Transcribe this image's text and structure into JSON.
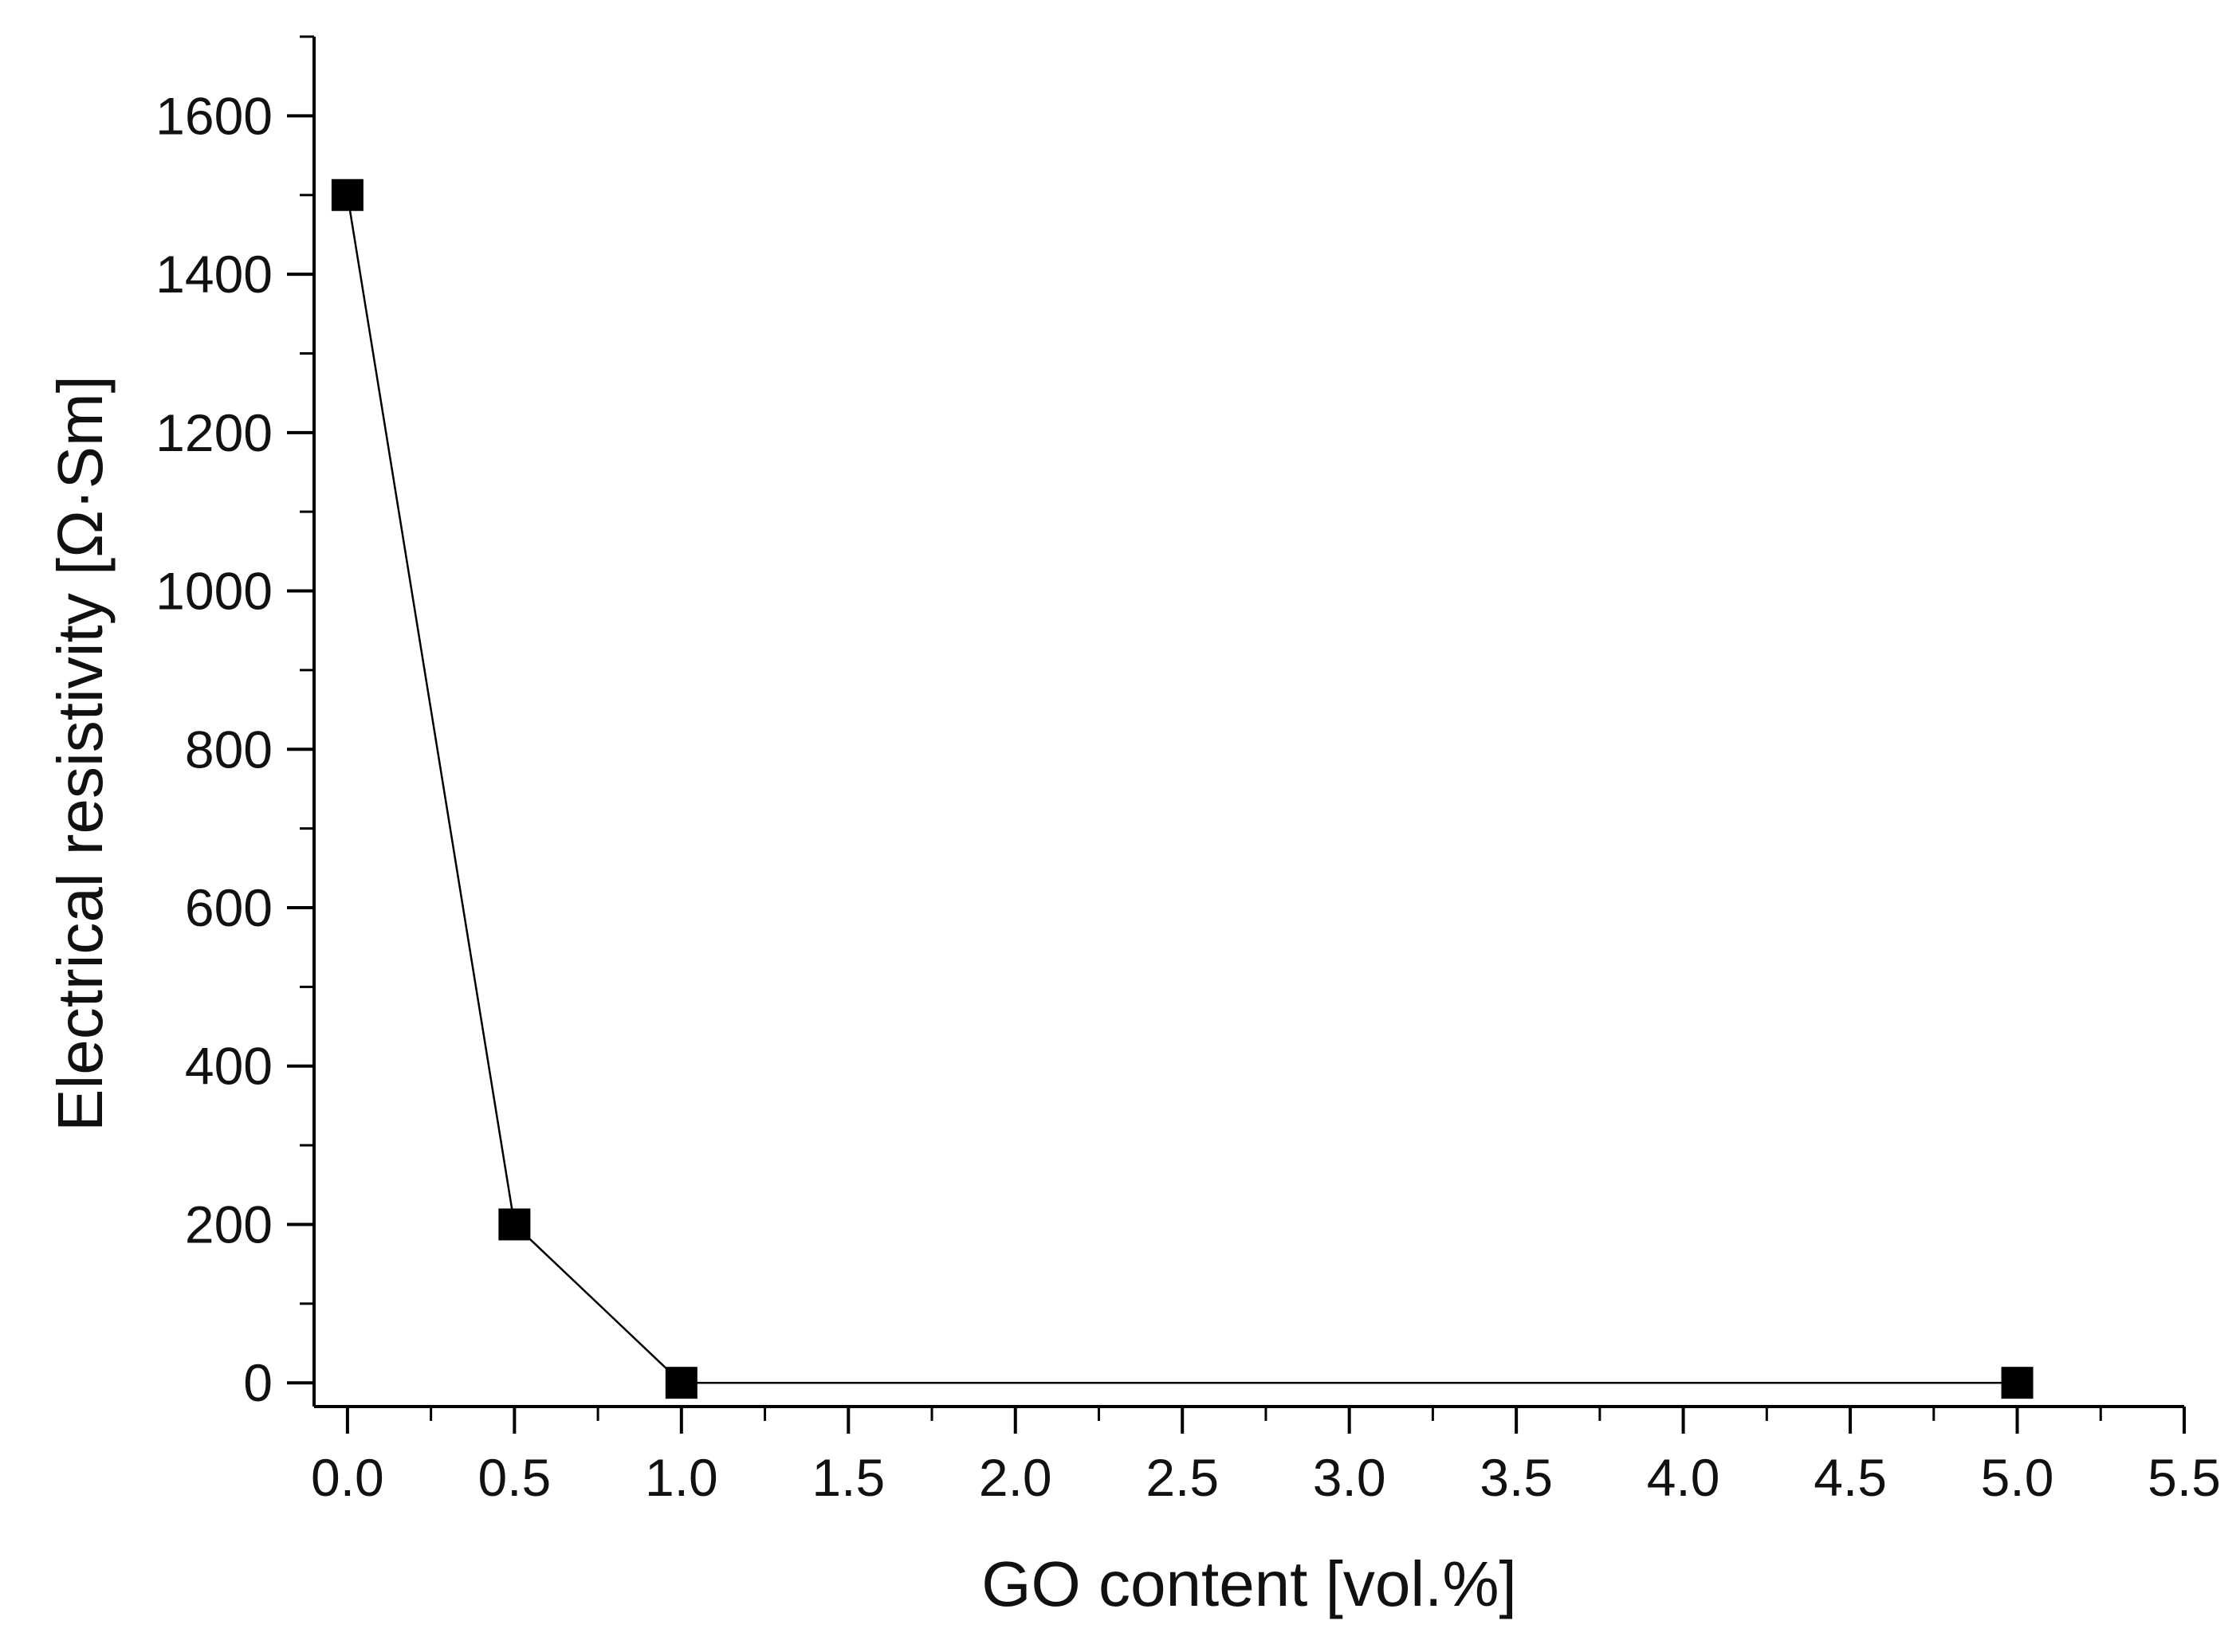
{
  "chart_data": {
    "type": "line",
    "title": "",
    "xlabel": "GO content [vol.%]",
    "ylabel": "Electrical resistivity [Ω·Sm]",
    "xlim": [
      -0.1,
      5.5
    ],
    "ylim": [
      -30,
      1700
    ],
    "x_ticks": [
      0.0,
      0.5,
      1.0,
      1.5,
      2.0,
      2.5,
      3.0,
      3.5,
      4.0,
      4.5,
      5.0,
      5.5
    ],
    "x_tick_labels": [
      "0.0",
      "0.5",
      "1.0",
      "1.5",
      "2.0",
      "2.5",
      "3.0",
      "3.5",
      "4.0",
      "4.5",
      "5.0",
      "5.5"
    ],
    "y_ticks": [
      0,
      200,
      400,
      600,
      800,
      1000,
      1200,
      1400,
      1600
    ],
    "y_tick_labels": [
      "0",
      "200",
      "400",
      "600",
      "800",
      "1000",
      "1200",
      "1400",
      "1600"
    ],
    "grid": false,
    "legend": "none",
    "series": [
      {
        "x": [
          0.0,
          0.5,
          1.0,
          5.0
        ],
        "y": [
          1500,
          200,
          0,
          0
        ],
        "marker": "square",
        "color": "#000000"
      }
    ]
  }
}
